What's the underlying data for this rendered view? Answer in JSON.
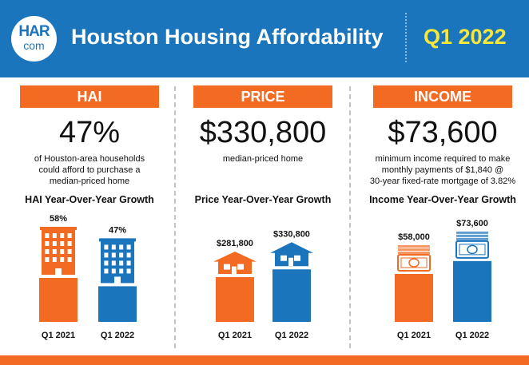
{
  "header": {
    "logo_top": "HAR",
    "logo_bottom": "com",
    "title": "Houston Housing Affordability",
    "quarter": "Q1 2022"
  },
  "colors": {
    "blue": "#1b75bc",
    "orange": "#f36a23",
    "yellow": "#f7e63b",
    "bar_2021": "#f36a23",
    "bar_2022": "#1b75bc"
  },
  "panels": {
    "hai": {
      "banner": "HAI",
      "value": "47%",
      "desc": [
        "of Houston-area households",
        "could afford to purchase a",
        "median-priced home"
      ],
      "subhead": "HAI Year-Over-Year Growth"
    },
    "price": {
      "banner": "PRICE",
      "value": "$330,800",
      "desc": [
        "median-priced home"
      ],
      "subhead": "Price Year-Over-Year Growth"
    },
    "income": {
      "banner": "INCOME",
      "value": "$73,600",
      "desc": [
        "minimum income required to make",
        "monthly payments of $1,840 @",
        "30-year fixed-rate mortgage of 3.82%"
      ],
      "subhead": "Income Year-Over-Year Growth"
    }
  },
  "chart_data": [
    {
      "type": "bar",
      "title": "HAI Year-Over-Year Growth",
      "categories": [
        "Q1 2021",
        "Q1 2022"
      ],
      "values": [
        58,
        47
      ],
      "labels": [
        "58%",
        "47%"
      ],
      "unit": "%",
      "icon": "building"
    },
    {
      "type": "bar",
      "title": "Price Year-Over-Year Growth",
      "categories": [
        "Q1 2021",
        "Q1 2022"
      ],
      "values": [
        281800,
        330800
      ],
      "labels": [
        "$281,800",
        "$330,800"
      ],
      "unit": "$",
      "icon": "house"
    },
    {
      "type": "bar",
      "title": "Income Year-Over-Year Growth",
      "categories": [
        "Q1 2021",
        "Q1 2022"
      ],
      "values": [
        58000,
        73600
      ],
      "labels": [
        "$58,000",
        "$73,600"
      ],
      "unit": "$",
      "icon": "cash"
    }
  ]
}
